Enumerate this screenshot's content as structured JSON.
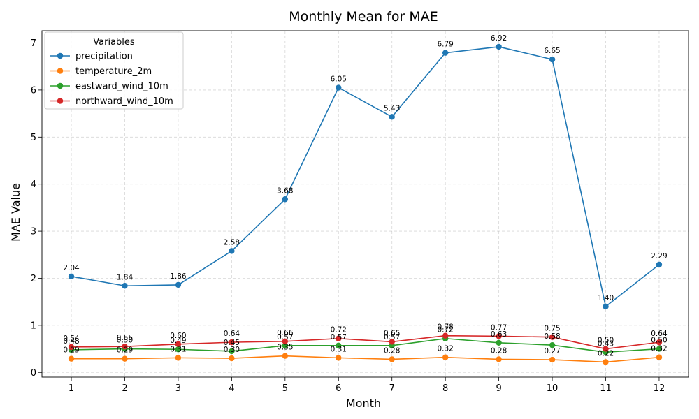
{
  "chart_data": {
    "type": "line",
    "title": "Monthly Mean for MAE",
    "xlabel": "Month",
    "ylabel": "MAE Value",
    "x": [
      1,
      2,
      3,
      4,
      5,
      6,
      7,
      8,
      9,
      10,
      11,
      12
    ],
    "xticks": [
      "1",
      "2",
      "3",
      "4",
      "5",
      "6",
      "7",
      "8",
      "9",
      "10",
      "11",
      "12"
    ],
    "yticks": [
      "0",
      "1",
      "2",
      "3",
      "4",
      "5",
      "6",
      "7"
    ],
    "xlim": [
      0.45,
      12.55
    ],
    "ylim": [
      -0.1,
      7.26
    ],
    "grid": true,
    "legend_title": "Variables",
    "legend_position": "upper left",
    "series": [
      {
        "name": "precipitation",
        "color": "#1f77b4",
        "values": [
          2.04,
          1.84,
          1.86,
          2.58,
          3.68,
          6.05,
          5.43,
          6.79,
          6.92,
          6.65,
          1.4,
          2.29
        ],
        "labels": [
          "2.04",
          "1.84",
          "1.86",
          "2.58",
          "3.68",
          "6.05",
          "5.43",
          "6.79",
          "6.92",
          "6.65",
          "1.40",
          "2.29"
        ]
      },
      {
        "name": "temperature_2m",
        "color": "#ff7f0e",
        "values": [
          0.29,
          0.29,
          0.31,
          0.3,
          0.35,
          0.31,
          0.28,
          0.32,
          0.28,
          0.27,
          0.22,
          0.32
        ],
        "labels": [
          "0.29",
          "0.29",
          "0.31",
          "0.30",
          "0.35",
          "0.31",
          "0.28",
          "0.32",
          "0.28",
          "0.27",
          "0.22",
          "0.32"
        ]
      },
      {
        "name": "eastward_wind_10m",
        "color": "#2ca02c",
        "values": [
          0.48,
          0.5,
          0.49,
          0.45,
          0.57,
          0.57,
          0.57,
          0.72,
          0.63,
          0.58,
          0.43,
          0.5
        ],
        "labels": [
          "0.48",
          "0.50",
          "0.49",
          "0.45",
          "0.57",
          "0.57",
          "0.57",
          "0.72",
          "0.63",
          "0.58",
          "0.43",
          "0.50"
        ]
      },
      {
        "name": "northward_wind_10m",
        "color": "#d62728",
        "values": [
          0.54,
          0.55,
          0.6,
          0.64,
          0.66,
          0.72,
          0.65,
          0.78,
          0.77,
          0.75,
          0.5,
          0.64
        ],
        "labels": [
          "0.54",
          "0.55",
          "0.60",
          "0.64",
          "0.66",
          "0.72",
          "0.65",
          "0.78",
          "0.77",
          "0.75",
          "0.50",
          "0.64"
        ]
      }
    ]
  }
}
